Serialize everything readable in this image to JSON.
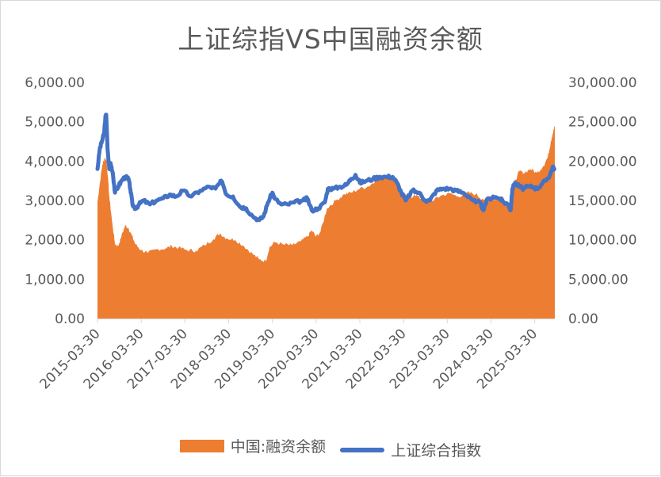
{
  "chart_data": {
    "type": "area+line",
    "title": "上证综指VS中国融资余额",
    "colors": {
      "area": "#ed7d31",
      "line": "#4472c4",
      "axis": "#d9d9d9",
      "text": "#595959"
    },
    "xlim": [
      2015.25,
      2025.71
    ],
    "x_ticks": [
      "2015-03-30",
      "2016-03-30",
      "2017-03-30",
      "2018-03-30",
      "2019-03-30",
      "2020-03-30",
      "2021-03-30",
      "2022-03-30",
      "2023-03-30",
      "2024-03-30",
      "2025-03-30"
    ],
    "x_tick_values": [
      2015.25,
      2016.25,
      2017.25,
      2018.25,
      2019.25,
      2020.25,
      2021.25,
      2022.25,
      2023.25,
      2024.25,
      2025.25
    ],
    "y_left": {
      "ticks": [
        "0.00",
        "1,000.00",
        "2,000.00",
        "3,000.00",
        "4,000.00",
        "5,000.00",
        "6,000.00"
      ],
      "ylim": [
        0,
        6000
      ]
    },
    "y_right": {
      "ticks": [
        "0.00",
        "5,000.00",
        "10,000.00",
        "15,000.00",
        "20,000.00",
        "25,000.00",
        "30,000.00"
      ],
      "ylim": [
        0,
        30000
      ]
    },
    "series": [
      {
        "name": "中国:融资余额",
        "axis": "right",
        "kind": "area",
        "points": [
          [
            2015.25,
            14800
          ],
          [
            2015.3,
            17000
          ],
          [
            2015.36,
            19500
          ],
          [
            2015.42,
            20500
          ],
          [
            2015.46,
            20000
          ],
          [
            2015.52,
            15500
          ],
          [
            2015.58,
            12500
          ],
          [
            2015.65,
            9500
          ],
          [
            2015.72,
            9200
          ],
          [
            2015.8,
            10500
          ],
          [
            2015.88,
            11800
          ],
          [
            2015.96,
            11500
          ],
          [
            2016.04,
            10500
          ],
          [
            2016.12,
            9400
          ],
          [
            2016.25,
            8700
          ],
          [
            2016.4,
            8300
          ],
          [
            2016.6,
            8800
          ],
          [
            2016.8,
            8900
          ],
          [
            2016.95,
            9200
          ],
          [
            2017.1,
            9000
          ],
          [
            2017.3,
            8700
          ],
          [
            2017.5,
            8600
          ],
          [
            2017.7,
            9300
          ],
          [
            2017.9,
            10100
          ],
          [
            2018.05,
            10800
          ],
          [
            2018.2,
            10200
          ],
          [
            2018.4,
            10000
          ],
          [
            2018.6,
            9200
          ],
          [
            2018.8,
            8200
          ],
          [
            2018.95,
            7500
          ],
          [
            2019.1,
            7300
          ],
          [
            2019.18,
            9000
          ],
          [
            2019.3,
            9700
          ],
          [
            2019.5,
            9400
          ],
          [
            2019.7,
            9300
          ],
          [
            2019.9,
            9800
          ],
          [
            2020.05,
            10400
          ],
          [
            2020.15,
            11200
          ],
          [
            2020.25,
            10400
          ],
          [
            2020.35,
            11000
          ],
          [
            2020.5,
            14000
          ],
          [
            2020.7,
            15000
          ],
          [
            2020.9,
            15800
          ],
          [
            2021.05,
            16000
          ],
          [
            2021.25,
            16500
          ],
          [
            2021.45,
            16800
          ],
          [
            2021.6,
            17500
          ],
          [
            2021.75,
            18200
          ],
          [
            2021.9,
            18200
          ],
          [
            2022.05,
            17500
          ],
          [
            2022.2,
            16500
          ],
          [
            2022.35,
            15000
          ],
          [
            2022.5,
            15800
          ],
          [
            2022.65,
            15200
          ],
          [
            2022.8,
            14800
          ],
          [
            2022.95,
            15100
          ],
          [
            2023.1,
            15600
          ],
          [
            2023.3,
            15900
          ],
          [
            2023.5,
            15500
          ],
          [
            2023.7,
            16000
          ],
          [
            2023.9,
            15800
          ],
          [
            2024.05,
            15200
          ],
          [
            2024.2,
            15100
          ],
          [
            2024.4,
            15200
          ],
          [
            2024.55,
            14600
          ],
          [
            2024.65,
            14300
          ],
          [
            2024.72,
            14700
          ],
          [
            2024.78,
            17300
          ],
          [
            2024.9,
            18700
          ],
          [
            2025.0,
            18500
          ],
          [
            2025.15,
            19000
          ],
          [
            2025.3,
            18500
          ],
          [
            2025.45,
            19400
          ],
          [
            2025.55,
            20500
          ],
          [
            2025.62,
            22500
          ],
          [
            2025.68,
            24000
          ],
          [
            2025.71,
            24500
          ]
        ]
      },
      {
        "name": "上证综合指数",
        "axis": "left",
        "kind": "line",
        "points": [
          [
            2015.25,
            3800
          ],
          [
            2015.3,
            4300
          ],
          [
            2015.35,
            4500
          ],
          [
            2015.4,
            4700
          ],
          [
            2015.43,
            5100
          ],
          [
            2015.45,
            5180
          ],
          [
            2015.48,
            4300
          ],
          [
            2015.52,
            3800
          ],
          [
            2015.55,
            3950
          ],
          [
            2015.6,
            3700
          ],
          [
            2015.65,
            3200
          ],
          [
            2015.72,
            3350
          ],
          [
            2015.8,
            3500
          ],
          [
            2015.88,
            3600
          ],
          [
            2015.96,
            3550
          ],
          [
            2016.0,
            3300
          ],
          [
            2016.05,
            2900
          ],
          [
            2016.12,
            2800
          ],
          [
            2016.2,
            2900
          ],
          [
            2016.3,
            3000
          ],
          [
            2016.45,
            2900
          ],
          [
            2016.6,
            3000
          ],
          [
            2016.75,
            3050
          ],
          [
            2016.9,
            3150
          ],
          [
            2017.05,
            3100
          ],
          [
            2017.2,
            3250
          ],
          [
            2017.4,
            3100
          ],
          [
            2017.6,
            3250
          ],
          [
            2017.8,
            3350
          ],
          [
            2017.95,
            3300
          ],
          [
            2018.05,
            3450
          ],
          [
            2018.1,
            3480
          ],
          [
            2018.2,
            3150
          ],
          [
            2018.35,
            3100
          ],
          [
            2018.5,
            2850
          ],
          [
            2018.65,
            2800
          ],
          [
            2018.8,
            2600
          ],
          [
            2018.95,
            2500
          ],
          [
            2019.05,
            2600
          ],
          [
            2019.15,
            2950
          ],
          [
            2019.25,
            3200
          ],
          [
            2019.3,
            3050
          ],
          [
            2019.45,
            2900
          ],
          [
            2019.6,
            2900
          ],
          [
            2019.75,
            2950
          ],
          [
            2019.95,
            3000
          ],
          [
            2020.05,
            3050
          ],
          [
            2020.15,
            2750
          ],
          [
            2020.3,
            2800
          ],
          [
            2020.45,
            2950
          ],
          [
            2020.52,
            3300
          ],
          [
            2020.65,
            3300
          ],
          [
            2020.8,
            3350
          ],
          [
            2020.95,
            3400
          ],
          [
            2021.05,
            3550
          ],
          [
            2021.15,
            3650
          ],
          [
            2021.25,
            3450
          ],
          [
            2021.4,
            3500
          ],
          [
            2021.55,
            3550
          ],
          [
            2021.7,
            3600
          ],
          [
            2021.85,
            3600
          ],
          [
            2022.0,
            3600
          ],
          [
            2022.1,
            3450
          ],
          [
            2022.2,
            3200
          ],
          [
            2022.3,
            3000
          ],
          [
            2022.45,
            3250
          ],
          [
            2022.6,
            3200
          ],
          [
            2022.75,
            3000
          ],
          [
            2022.85,
            3000
          ],
          [
            2023.0,
            3250
          ],
          [
            2023.15,
            3300
          ],
          [
            2023.3,
            3300
          ],
          [
            2023.45,
            3250
          ],
          [
            2023.6,
            3200
          ],
          [
            2023.75,
            3100
          ],
          [
            2023.9,
            2950
          ],
          [
            2024.0,
            2950
          ],
          [
            2024.08,
            2750
          ],
          [
            2024.15,
            3000
          ],
          [
            2024.3,
            3100
          ],
          [
            2024.45,
            3050
          ],
          [
            2024.55,
            2950
          ],
          [
            2024.65,
            2900
          ],
          [
            2024.7,
            2750
          ],
          [
            2024.74,
            3300
          ],
          [
            2024.8,
            3450
          ],
          [
            2024.9,
            3350
          ],
          [
            2025.0,
            3300
          ],
          [
            2025.1,
            3350
          ],
          [
            2025.2,
            3350
          ],
          [
            2025.3,
            3300
          ],
          [
            2025.4,
            3400
          ],
          [
            2025.5,
            3500
          ],
          [
            2025.6,
            3650
          ],
          [
            2025.66,
            3850
          ],
          [
            2025.7,
            3800
          ]
        ]
      }
    ]
  }
}
